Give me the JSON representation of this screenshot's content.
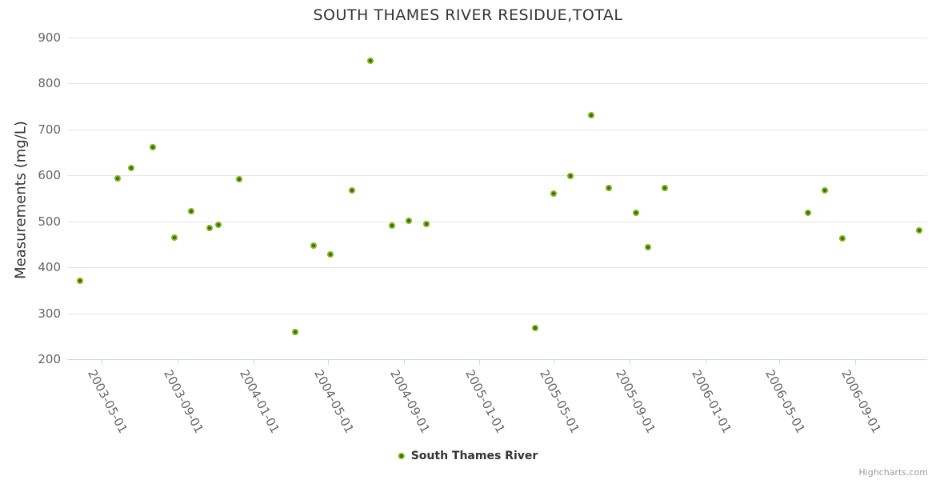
{
  "chart": {
    "title": "SOUTH THAMES RIVER RESIDUE,TOTAL",
    "y_axis_title": "Measurements (mg/L)",
    "legend_label": "South Thames River",
    "credit": "Highcharts.com"
  },
  "chart_data": {
    "type": "scatter",
    "title": "SOUTH THAMES RIVER RESIDUE,TOTAL",
    "xlabel": "",
    "ylabel": "Measurements (mg/L)",
    "ylim": [
      200,
      900
    ],
    "y_ticks": [
      200,
      300,
      400,
      500,
      600,
      700,
      800,
      900
    ],
    "x_ticks": [
      "2003-05-01",
      "2003-09-01",
      "2004-01-01",
      "2004-05-01",
      "2004-09-01",
      "2005-01-01",
      "2005-05-01",
      "2005-09-01",
      "2006-01-01",
      "2006-05-01",
      "2006-09-01"
    ],
    "grid": "horizontal-only",
    "legend_position": "bottom-center",
    "marker_colors": {
      "inner": "#3e6a0c",
      "ring": "#7db818"
    },
    "axis_colors": {
      "line": "#ccd6eb",
      "grid": "#e6e6e6",
      "label": "#666666",
      "title": "#333333"
    },
    "series": [
      {
        "name": "South Thames River",
        "points": [
          {
            "date": "2003-03-27",
            "value": 371
          },
          {
            "date": "2003-05-27",
            "value": 593
          },
          {
            "date": "2003-06-18",
            "value": 617
          },
          {
            "date": "2003-07-23",
            "value": 662
          },
          {
            "date": "2003-08-27",
            "value": 464
          },
          {
            "date": "2003-09-23",
            "value": 523
          },
          {
            "date": "2003-10-22",
            "value": 485
          },
          {
            "date": "2003-11-05",
            "value": 493
          },
          {
            "date": "2003-12-09",
            "value": 591
          },
          {
            "date": "2004-03-09",
            "value": 260
          },
          {
            "date": "2004-04-07",
            "value": 447
          },
          {
            "date": "2004-05-05",
            "value": 428
          },
          {
            "date": "2004-06-09",
            "value": 567
          },
          {
            "date": "2004-07-08",
            "value": 849
          },
          {
            "date": "2004-08-12",
            "value": 490
          },
          {
            "date": "2004-09-09",
            "value": 502
          },
          {
            "date": "2004-10-07",
            "value": 494
          },
          {
            "date": "2005-04-01",
            "value": 268
          },
          {
            "date": "2005-05-01",
            "value": 560
          },
          {
            "date": "2005-05-28",
            "value": 599
          },
          {
            "date": "2005-07-01",
            "value": 731
          },
          {
            "date": "2005-07-29",
            "value": 572
          },
          {
            "date": "2005-09-11",
            "value": 518
          },
          {
            "date": "2005-10-01",
            "value": 443
          },
          {
            "date": "2005-10-28",
            "value": 572
          },
          {
            "date": "2006-06-16",
            "value": 519
          },
          {
            "date": "2006-07-13",
            "value": 567
          },
          {
            "date": "2006-08-11",
            "value": 463
          },
          {
            "date": "2006-12-13",
            "value": 480
          }
        ]
      }
    ]
  }
}
